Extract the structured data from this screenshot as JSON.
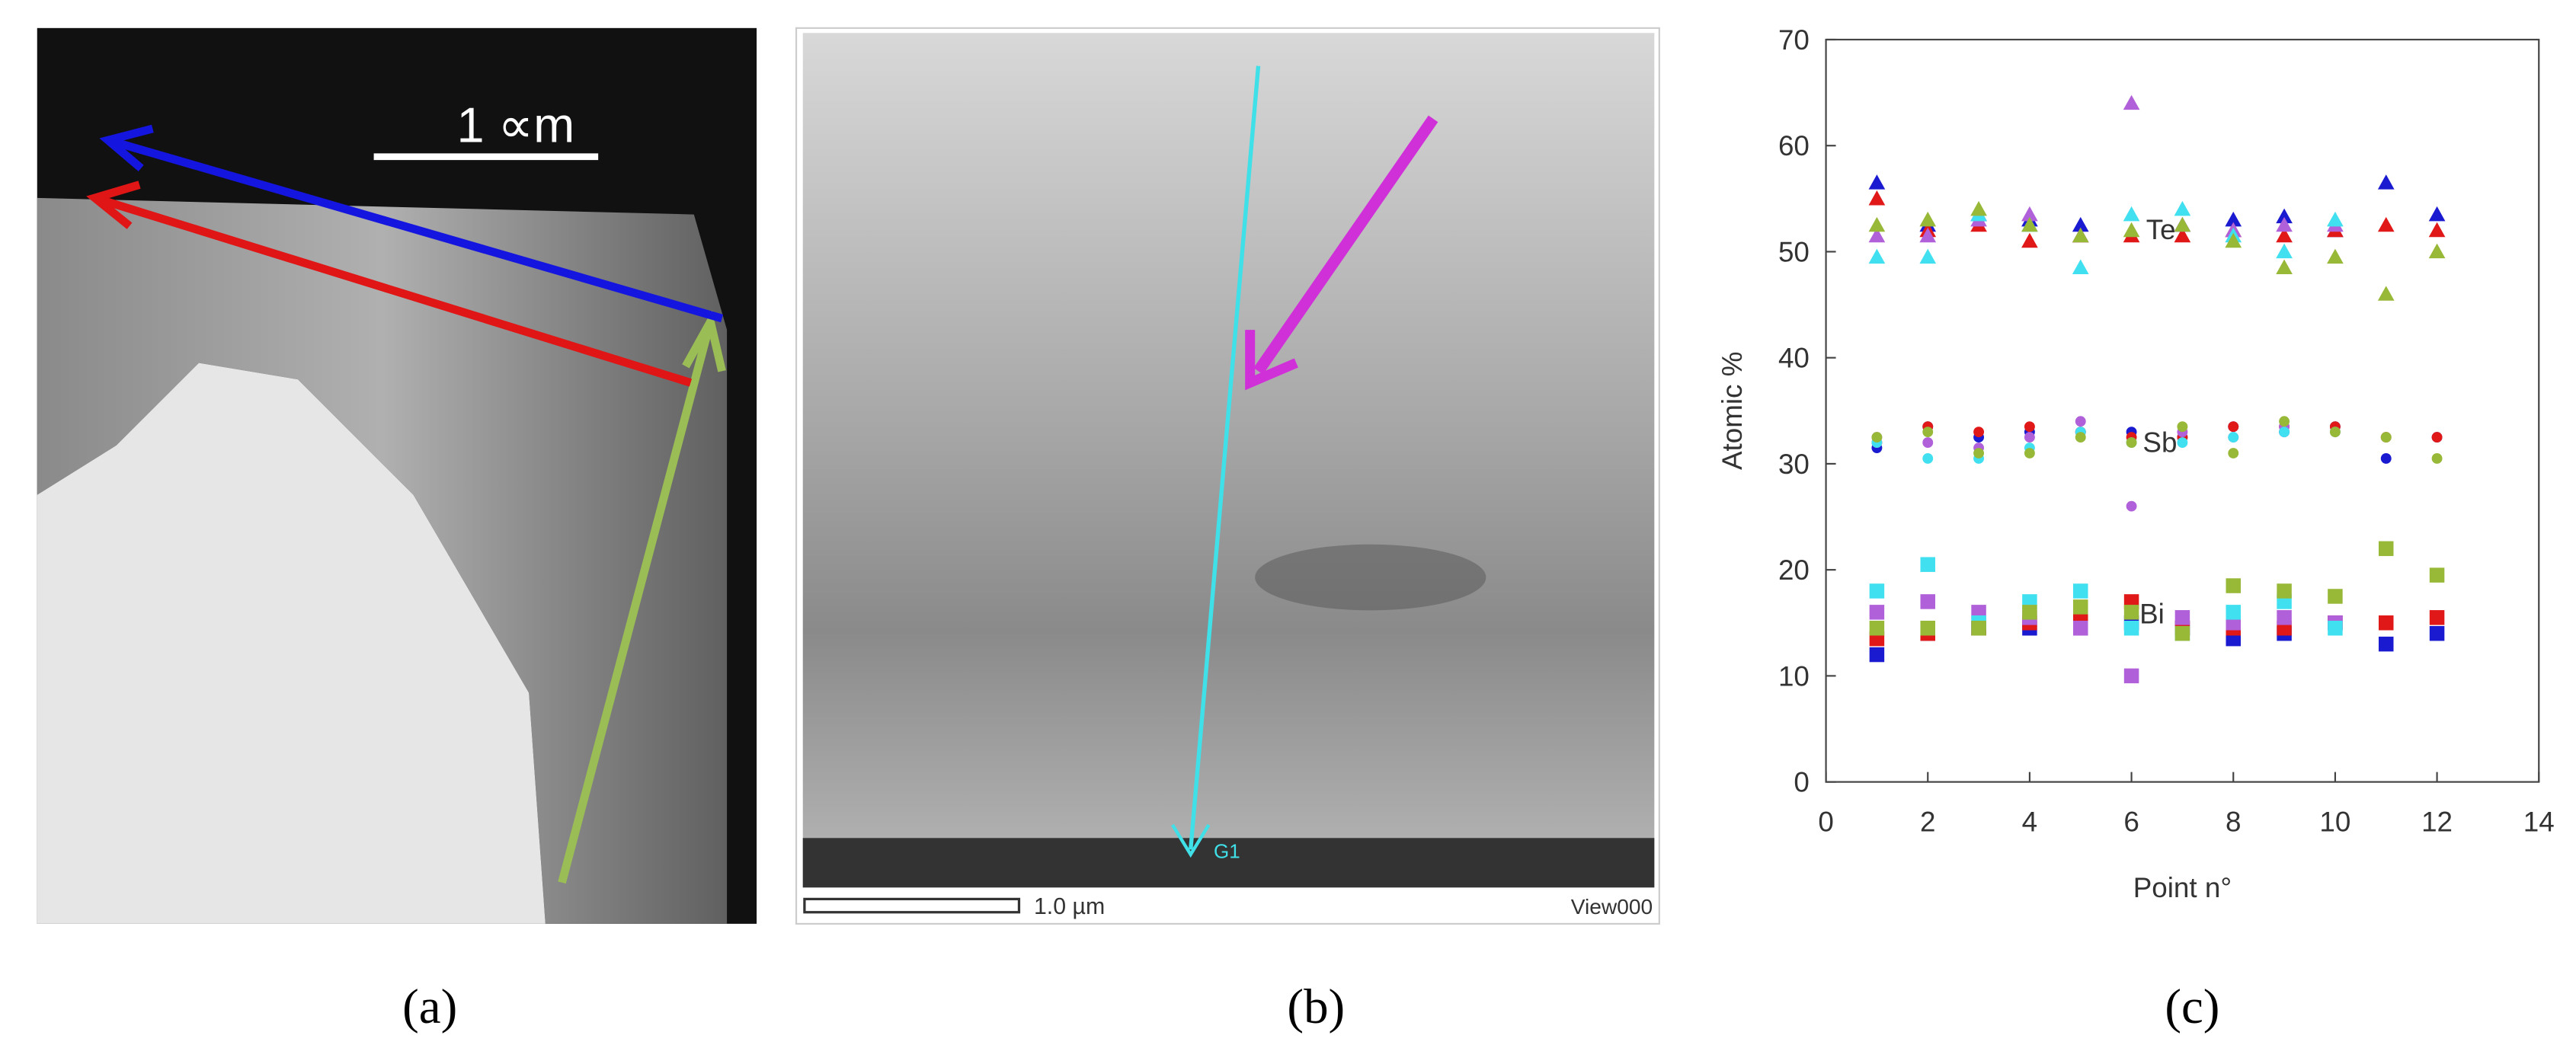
{
  "figure": {
    "labels": [
      "(a)",
      "(b)",
      "(c)"
    ]
  },
  "panel_a": {
    "scale_bar": "1 ∝m"
  },
  "panel_b": {
    "scale_bar": "1.0 µm",
    "view": "View000",
    "point": "G1"
  },
  "chart_data": {
    "type": "scatter",
    "xlabel": "Point  n°",
    "ylabel": "Atomic %",
    "xlim": [
      0,
      14
    ],
    "xticks": [
      0,
      2,
      4,
      6,
      8,
      10,
      12,
      14
    ],
    "ylim": [
      0,
      70
    ],
    "yticks": [
      0,
      10,
      20,
      30,
      40,
      50,
      60,
      70
    ],
    "annotations": [
      "Te",
      "Sb",
      "Bi"
    ],
    "x": [
      1,
      2,
      3,
      4,
      5,
      6,
      7,
      8,
      9,
      10,
      11,
      12
    ],
    "series": [
      {
        "color": "#1a1ad0",
        "marker": "triangle",
        "values": [
          56.5,
          52.5,
          53.5,
          53,
          52.5,
          null,
          52.5,
          53,
          53.3,
          52,
          56.5,
          53.5
        ]
      },
      {
        "color": "#e01818",
        "marker": "triangle",
        "values": [
          55,
          52,
          52.5,
          51,
          51.5,
          51.5,
          51.5,
          52,
          51.5,
          52,
          52.5,
          52
        ]
      },
      {
        "color": "#b060d8",
        "marker": "triangle",
        "values": [
          51.5,
          51.5,
          53,
          53.5,
          51.5,
          64,
          52.5,
          52,
          52.5,
          52.5,
          null,
          null
        ]
      },
      {
        "color": "#40e0f0",
        "marker": "triangle",
        "values": [
          49.5,
          49.5,
          53.5,
          52.5,
          48.5,
          53.5,
          54,
          51.5,
          50,
          53,
          null,
          null
        ]
      },
      {
        "color": "#98b838",
        "marker": "triangle",
        "values": [
          52.5,
          53,
          54,
          52.5,
          51.5,
          52,
          52.5,
          51,
          48.5,
          49.5,
          46,
          50
        ]
      },
      {
        "color": "#1a1ad0",
        "marker": "circle",
        "values": [
          31.5,
          33.5,
          32.5,
          33,
          33,
          33,
          32.5,
          33.5,
          33,
          33.5,
          30.5,
          32.5
        ]
      },
      {
        "color": "#e01818",
        "marker": "circle",
        "values": [
          32,
          33.5,
          33,
          33.5,
          33,
          32.5,
          32.5,
          33.5,
          33.5,
          33.5,
          32.5,
          32.5
        ]
      },
      {
        "color": "#b060d8",
        "marker": "circle",
        "values": [
          32.5,
          32,
          31.5,
          32.5,
          34,
          26,
          33,
          32.5,
          33.5,
          33,
          null,
          null
        ]
      },
      {
        "color": "#40e0f0",
        "marker": "circle",
        "values": [
          32,
          30.5,
          30.5,
          31.5,
          33,
          32,
          32,
          32.5,
          33,
          33,
          null,
          null
        ]
      },
      {
        "color": "#98b838",
        "marker": "circle",
        "values": [
          32.5,
          33,
          31,
          31,
          32.5,
          32,
          33.5,
          31,
          34,
          33,
          32.5,
          30.5
        ]
      },
      {
        "color": "#1a1ad0",
        "marker": "square",
        "values": [
          12,
          14,
          14.5,
          14.5,
          14.5,
          15,
          14.5,
          13.5,
          14,
          15,
          13,
          14
        ]
      },
      {
        "color": "#e01818",
        "marker": "square",
        "values": [
          13.5,
          14,
          14.5,
          15,
          15.5,
          17,
          14.5,
          14.5,
          14.5,
          15,
          15,
          15.5
        ]
      },
      {
        "color": "#b060d8",
        "marker": "square",
        "values": [
          16,
          17,
          16,
          15.5,
          14.5,
          10,
          15.5,
          15,
          15.5,
          15,
          null,
          null
        ]
      },
      {
        "color": "#40e0f0",
        "marker": "square",
        "values": [
          18,
          20.5,
          15,
          17,
          18,
          14.5,
          14,
          16,
          17,
          14.5,
          null,
          null
        ]
      },
      {
        "color": "#98b838",
        "marker": "square",
        "values": [
          14.5,
          14.5,
          14.5,
          16,
          16.5,
          16,
          14,
          18.5,
          18,
          17.5,
          22,
          19.5
        ]
      }
    ]
  }
}
